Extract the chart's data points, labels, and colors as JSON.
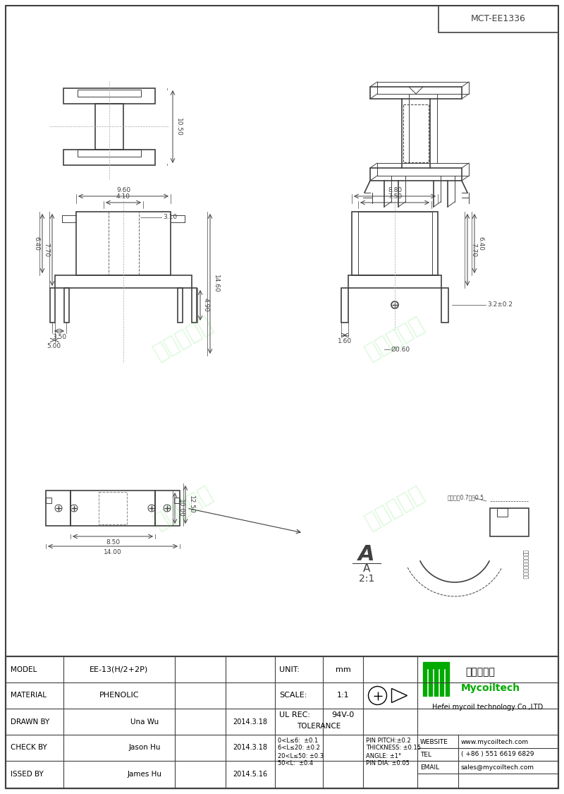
{
  "title": "MCT-EE1336",
  "bg_color": "#ffffff",
  "line_color": "#404040",
  "dim_color": "#404040",
  "text_color": "#000000",
  "green_color": "#00aa00",
  "border_color": "#404040",
  "table_data": {
    "model": "EE-13(H/2+2P)",
    "material": "PHENOLIC",
    "drawn_by": "Una Wu",
    "drawn_date": "2014.3.18",
    "check_by": "Jason Hu",
    "check_date": "2014.3.18",
    "issued_by": "James Hu",
    "issued_date": "2014.5.16",
    "unit": "mm",
    "scale": "1:1",
    "ul_rec": "94V-0",
    "tolerance_lines": [
      "0<L≤6:  ±0.1",
      "6<L≤20: ±0.2",
      "20<L≤50: ±0.3",
      "50<L:  ±0.4"
    ],
    "pin_specs": [
      "PIN PITCH:±0.2",
      "THICKNESS: ±0.15",
      "ANGLE: ±1°",
      "PIN DIA: ±0.05"
    ],
    "company": "Hefei mycoil technology Co.,LTD",
    "website": "www.mycoiltech.com",
    "tel": "( +86 ) 551 6619 6829",
    "email": "sales@mycoiltech.com"
  },
  "dimensions": {
    "groove_text": "压渏宽度0.7深度0.5",
    "coil_text": "压渏长度与各点等分"
  }
}
